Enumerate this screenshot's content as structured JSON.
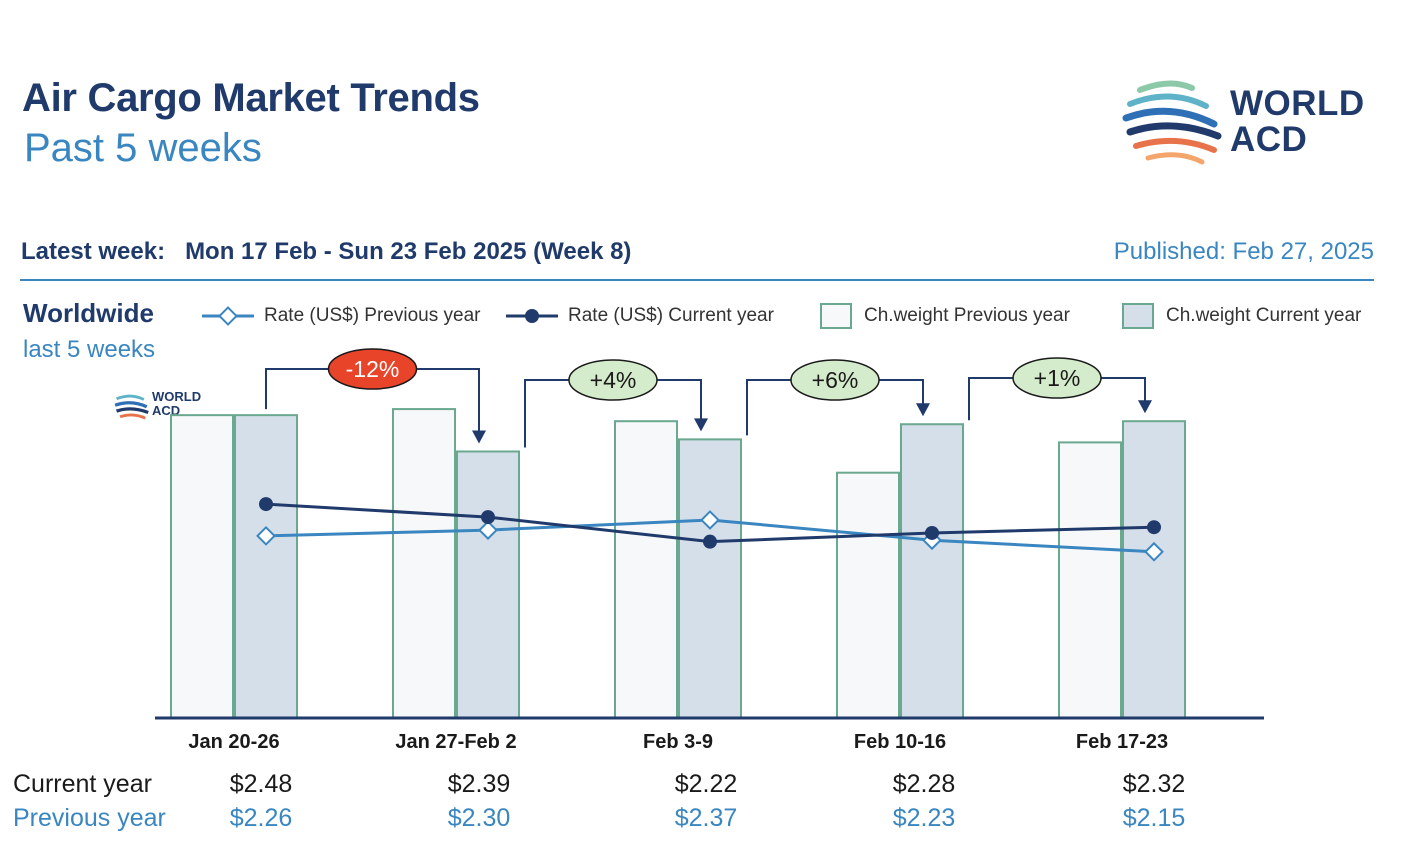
{
  "header": {
    "title": "Air Cargo Market Trends",
    "subtitle": "Past 5 weeks",
    "logo_line1": "WORLD",
    "logo_line2": "ACD",
    "latest_label": "Latest week:",
    "latest_value": "Mon 17 Feb - Sun 23 Feb 2025 (Week 8)",
    "published": "Published: Feb 27, 2025"
  },
  "region": {
    "title": "Worldwide",
    "subtitle": "last 5 weeks"
  },
  "legend": [
    {
      "label": "Rate (US$) Previous year",
      "kind": "line-diamond",
      "color": "#3a86c0"
    },
    {
      "label": "Rate (US$) Current year",
      "kind": "line-dot",
      "color": "#1f3a6b"
    },
    {
      "label": "Ch.weight Previous year",
      "kind": "box",
      "fill": "#f7f8fa",
      "stroke": "#6aa88f"
    },
    {
      "label": "Ch.weight Current year",
      "kind": "box",
      "fill": "#d5dfea",
      "stroke": "#6aa88f"
    }
  ],
  "table": {
    "current_label": "Current year",
    "previous_label": "Previous year"
  },
  "colors": {
    "navy": "#1f3a6b",
    "blue": "#3a86c0",
    "bar_prev_fill": "#f7f8fa",
    "bar_cur_fill": "#d5dfea",
    "bar_stroke": "#6aa88f",
    "badge_red": "#e8442a",
    "badge_green": "#d4ebcc"
  },
  "chart_data": {
    "type": "bar",
    "categories": [
      "Jan 20-26",
      "Jan 27-Feb 2",
      "Feb 3-9",
      "Feb 10-16",
      "Feb 17-23"
    ],
    "series": [
      {
        "name": "Ch.weight Previous year",
        "kind": "bar",
        "values": [
          100,
          102,
          98,
          81,
          91
        ]
      },
      {
        "name": "Ch.weight Current year",
        "kind": "bar",
        "values": [
          100,
          88,
          92,
          97,
          98
        ]
      },
      {
        "name": "Rate (US$) Previous year",
        "kind": "line",
        "values": [
          2.26,
          2.3,
          2.37,
          2.23,
          2.15
        ],
        "labels": [
          "$2.26",
          "$2.30",
          "$2.37",
          "$2.23",
          "$2.15"
        ]
      },
      {
        "name": "Rate (US$) Current year",
        "kind": "line",
        "values": [
          2.48,
          2.39,
          2.22,
          2.28,
          2.32
        ],
        "labels": [
          "$2.48",
          "$2.39",
          "$2.22",
          "$2.28",
          "$2.32"
        ]
      }
    ],
    "changes": [
      {
        "from": 0,
        "to": 1,
        "label": "-12%",
        "color": "red"
      },
      {
        "from": 1,
        "to": 2,
        "label": "+4%",
        "color": "green"
      },
      {
        "from": 2,
        "to": 3,
        "label": "+6%",
        "color": "green"
      },
      {
        "from": 3,
        "to": 4,
        "label": "+1%",
        "color": "green"
      }
    ],
    "ylim": [
      0,
      105
    ],
    "grid": false,
    "legend_position": "top"
  }
}
